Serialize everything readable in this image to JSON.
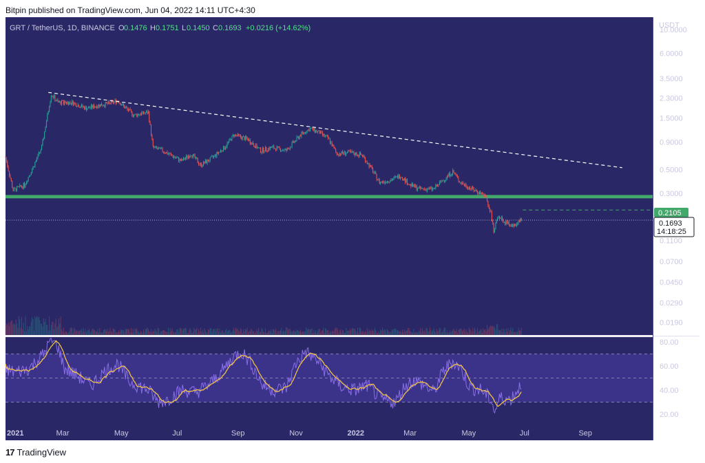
{
  "header": {
    "published": "Bitpin published on TradingView.com, Jun 04, 2022 14:11 UTC+4:30"
  },
  "legend": {
    "symbol": "GRT / TetherUS, 1D, BINANCE",
    "o_label": "O",
    "o": "0.1476",
    "h_label": "H",
    "h": "0.1751",
    "l_label": "L",
    "l": "0.1450",
    "c_label": "C",
    "c": "0.1693",
    "change": "+0.0216 (+14.62%)"
  },
  "price_axis": {
    "unit": "USDT",
    "ticks": [
      "10.0000",
      "6.0000",
      "3.5000",
      "2.3000",
      "1.5000",
      "0.9000",
      "0.5000",
      "0.3000",
      "0.1100",
      "0.0700",
      "0.0450",
      "0.0290",
      "0.0190"
    ],
    "tick_values": [
      10,
      6,
      3.5,
      2.3,
      1.5,
      0.9,
      0.5,
      0.3,
      0.11,
      0.07,
      0.045,
      0.029,
      0.019
    ],
    "scale": "log",
    "range": [
      0.0145,
      13.0
    ],
    "last_price_label": "0.1693",
    "countdown_label": "14:18:25",
    "level_label": "0.2105",
    "level_value": 0.2105
  },
  "rsi_axis": {
    "ticks": [
      "80.00",
      "60.00",
      "40.00",
      "20.00"
    ],
    "tick_values": [
      80,
      60,
      40,
      20
    ],
    "range": [
      12,
      84
    ],
    "band": [
      30,
      70
    ],
    "midline": 50
  },
  "time_axis": {
    "labels": [
      {
        "text": "2021",
        "bold": true,
        "t": 0
      },
      {
        "text": "Mar",
        "bold": false,
        "t": 59
      },
      {
        "text": "May",
        "bold": false,
        "t": 120
      },
      {
        "text": "Jul",
        "bold": false,
        "t": 181
      },
      {
        "text": "Sep",
        "bold": false,
        "t": 243
      },
      {
        "text": "Nov",
        "bold": false,
        "t": 304
      },
      {
        "text": "2022",
        "bold": true,
        "t": 365
      },
      {
        "text": "Mar",
        "bold": false,
        "t": 424
      },
      {
        "text": "May",
        "bold": false,
        "t": 485
      },
      {
        "text": "Jul",
        "bold": false,
        "t": 546
      },
      {
        "text": "Sep",
        "bold": false,
        "t": 608
      }
    ],
    "range_days": [
      0,
      680
    ]
  },
  "colors": {
    "background": "#2a2766",
    "rsi_band": "#3b338a",
    "up": "#26a69a",
    "down": "#ef5350",
    "support_zone": "#43a96a",
    "rsi_line": "#8a6fe8",
    "rsi_ma": "#f0c24b",
    "trendline": "#ffffff",
    "level": "#43a96a",
    "axis_text": "#c9c8e0",
    "legend_green": "#53e08a"
  },
  "chart_data": {
    "type": "candlestick",
    "scale": "log",
    "period": "1D",
    "anchors": [
      {
        "t": 0,
        "p": 0.65
      },
      {
        "t": 8,
        "p": 0.32
      },
      {
        "t": 20,
        "p": 0.36
      },
      {
        "t": 30,
        "p": 0.55
      },
      {
        "t": 38,
        "p": 0.8
      },
      {
        "t": 48,
        "p": 2.5
      },
      {
        "t": 55,
        "p": 2.1
      },
      {
        "t": 70,
        "p": 2.1
      },
      {
        "t": 85,
        "p": 1.85
      },
      {
        "t": 100,
        "p": 2.0
      },
      {
        "t": 110,
        "p": 2.05
      },
      {
        "t": 118,
        "p": 2.2
      },
      {
        "t": 125,
        "p": 1.9
      },
      {
        "t": 135,
        "p": 1.6
      },
      {
        "t": 150,
        "p": 1.7
      },
      {
        "t": 155,
        "p": 0.8
      },
      {
        "t": 165,
        "p": 0.75
      },
      {
        "t": 185,
        "p": 0.6
      },
      {
        "t": 195,
        "p": 0.7
      },
      {
        "t": 205,
        "p": 0.55
      },
      {
        "t": 215,
        "p": 0.62
      },
      {
        "t": 230,
        "p": 0.8
      },
      {
        "t": 240,
        "p": 1.05
      },
      {
        "t": 255,
        "p": 0.95
      },
      {
        "t": 268,
        "p": 0.75
      },
      {
        "t": 280,
        "p": 0.8
      },
      {
        "t": 295,
        "p": 0.75
      },
      {
        "t": 310,
        "p": 1.05
      },
      {
        "t": 320,
        "p": 1.2
      },
      {
        "t": 330,
        "p": 1.1
      },
      {
        "t": 340,
        "p": 0.95
      },
      {
        "t": 348,
        "p": 0.7
      },
      {
        "t": 360,
        "p": 0.72
      },
      {
        "t": 375,
        "p": 0.68
      },
      {
        "t": 385,
        "p": 0.5
      },
      {
        "t": 393,
        "p": 0.38
      },
      {
        "t": 405,
        "p": 0.4
      },
      {
        "t": 415,
        "p": 0.44
      },
      {
        "t": 425,
        "p": 0.36
      },
      {
        "t": 435,
        "p": 0.33
      },
      {
        "t": 450,
        "p": 0.33
      },
      {
        "t": 460,
        "p": 0.4
      },
      {
        "t": 470,
        "p": 0.48
      },
      {
        "t": 478,
        "p": 0.38
      },
      {
        "t": 490,
        "p": 0.33
      },
      {
        "t": 500,
        "p": 0.3
      },
      {
        "t": 505,
        "p": 0.27
      },
      {
        "t": 510,
        "p": 0.2
      },
      {
        "t": 513,
        "p": 0.13
      },
      {
        "t": 518,
        "p": 0.19
      },
      {
        "t": 525,
        "p": 0.16
      },
      {
        "t": 535,
        "p": 0.15
      },
      {
        "t": 540,
        "p": 0.17
      },
      {
        "t": 542,
        "p": 0.1693
      }
    ],
    "support_zone": {
      "low": 0.27,
      "high": 0.29
    },
    "trendline": {
      "start": {
        "t": 45,
        "p": 2.6
      },
      "end": {
        "t": 648,
        "p": 0.52
      }
    },
    "rsi": {
      "length": 14,
      "anchors": [
        {
          "t": 0,
          "v": 57
        },
        {
          "t": 10,
          "v": 55
        },
        {
          "t": 25,
          "v": 58
        },
        {
          "t": 40,
          "v": 70
        },
        {
          "t": 48,
          "v": 82
        },
        {
          "t": 55,
          "v": 76
        },
        {
          "t": 62,
          "v": 58
        },
        {
          "t": 75,
          "v": 52
        },
        {
          "t": 90,
          "v": 44
        },
        {
          "t": 105,
          "v": 56
        },
        {
          "t": 118,
          "v": 62
        },
        {
          "t": 130,
          "v": 47
        },
        {
          "t": 150,
          "v": 40
        },
        {
          "t": 160,
          "v": 30
        },
        {
          "t": 170,
          "v": 32
        },
        {
          "t": 185,
          "v": 40
        },
        {
          "t": 200,
          "v": 38
        },
        {
          "t": 215,
          "v": 45
        },
        {
          "t": 228,
          "v": 56
        },
        {
          "t": 240,
          "v": 68
        },
        {
          "t": 248,
          "v": 72
        },
        {
          "t": 258,
          "v": 62
        },
        {
          "t": 270,
          "v": 44
        },
        {
          "t": 282,
          "v": 40
        },
        {
          "t": 295,
          "v": 42
        },
        {
          "t": 305,
          "v": 62
        },
        {
          "t": 315,
          "v": 72
        },
        {
          "t": 328,
          "v": 64
        },
        {
          "t": 342,
          "v": 50
        },
        {
          "t": 355,
          "v": 42
        },
        {
          "t": 368,
          "v": 40
        },
        {
          "t": 380,
          "v": 44
        },
        {
          "t": 395,
          "v": 32
        },
        {
          "t": 410,
          "v": 30
        },
        {
          "t": 420,
          "v": 44
        },
        {
          "t": 430,
          "v": 48
        },
        {
          "t": 440,
          "v": 44
        },
        {
          "t": 450,
          "v": 38
        },
        {
          "t": 460,
          "v": 56
        },
        {
          "t": 470,
          "v": 64
        },
        {
          "t": 478,
          "v": 58
        },
        {
          "t": 488,
          "v": 42
        },
        {
          "t": 500,
          "v": 40
        },
        {
          "t": 510,
          "v": 32
        },
        {
          "t": 514,
          "v": 22
        },
        {
          "t": 520,
          "v": 34
        },
        {
          "t": 530,
          "v": 32
        },
        {
          "t": 538,
          "v": 40
        },
        {
          "t": 542,
          "v": 46
        }
      ]
    }
  }
}
